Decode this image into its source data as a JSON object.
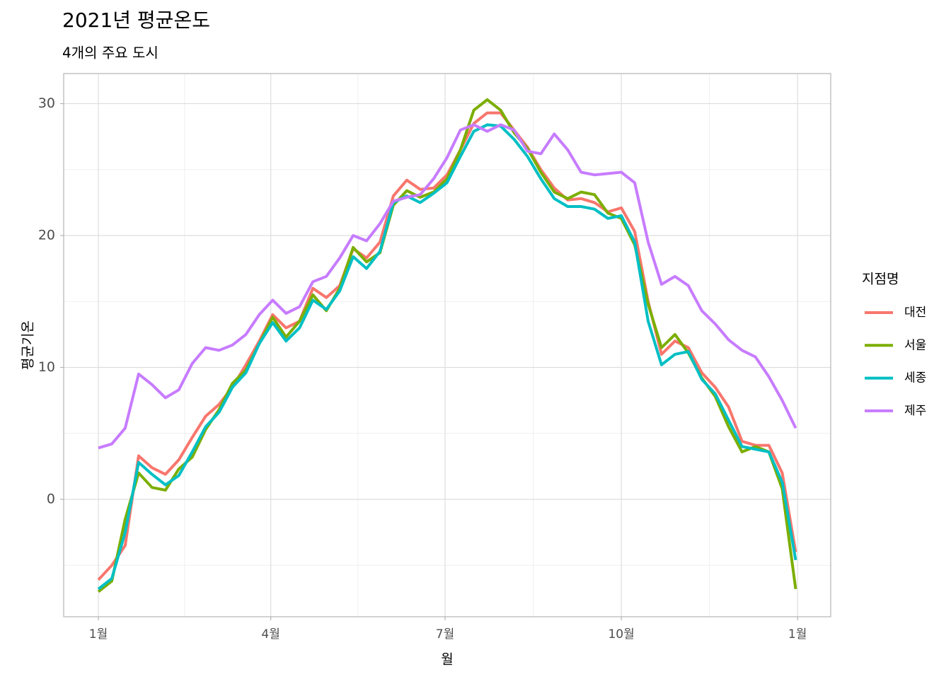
{
  "chart_data": {
    "type": "line",
    "title": "2021년 평균온도",
    "subtitle": "4개의 주요 도시",
    "xlabel": "월",
    "ylabel": "평균기온",
    "legend_title": "지점명",
    "legend_position": "right",
    "grid": true,
    "x": [
      0,
      7,
      14,
      21,
      28,
      35,
      42,
      49,
      56,
      63,
      70,
      77,
      84,
      91,
      98,
      105,
      112,
      119,
      126,
      133,
      140,
      147,
      154,
      161,
      168,
      175,
      182,
      189,
      196,
      203,
      210,
      217,
      224,
      231,
      238,
      245,
      252,
      259,
      266,
      273,
      280,
      287,
      294,
      301,
      308,
      315,
      322,
      329,
      336,
      343,
      350,
      357,
      364
    ],
    "xlim": [
      -18.1,
      382.3
    ],
    "xticks": [
      {
        "value": 0,
        "label": "1월"
      },
      {
        "value": 90,
        "label": "4월"
      },
      {
        "value": 181,
        "label": "7월"
      },
      {
        "value": 273,
        "label": "10월"
      },
      {
        "value": 365,
        "label": "1월"
      }
    ],
    "minor_xticks": [
      45,
      135.5,
      227,
      319
    ],
    "ylim": [
      -8.9,
      32.28
    ],
    "yticks": [
      0,
      10,
      20,
      30
    ],
    "minor_yticks": [
      -5,
      5,
      15,
      25
    ],
    "series": [
      {
        "name": "대전",
        "color": "#F8766D",
        "values": [
          -6.1,
          -5.0,
          -3.5,
          3.3,
          2.4,
          1.9,
          3.0,
          4.7,
          6.3,
          7.2,
          8.5,
          10.2,
          12.0,
          14.0,
          13.0,
          13.5,
          16.0,
          15.3,
          16.2,
          19.0,
          18.3,
          19.5,
          23.0,
          24.2,
          23.5,
          23.6,
          24.6,
          26.5,
          28.5,
          29.3,
          29.3,
          28.0,
          26.7,
          25.0,
          23.6,
          22.7,
          22.8,
          22.5,
          21.8,
          22.1,
          20.3,
          15.0,
          11.0,
          12.0,
          11.5,
          9.6,
          8.5,
          7.0,
          4.4,
          4.1,
          4.1,
          2.0,
          -4.0
        ]
      },
      {
        "name": "서울",
        "color": "#7CAE00",
        "values": [
          -7.0,
          -6.2,
          -1.5,
          2.0,
          0.9,
          0.7,
          2.3,
          3.2,
          5.3,
          6.8,
          8.8,
          9.8,
          11.8,
          13.8,
          12.3,
          13.5,
          15.5,
          14.3,
          16.0,
          19.1,
          18.0,
          18.7,
          22.3,
          23.4,
          22.9,
          23.3,
          24.3,
          26.5,
          29.5,
          30.3,
          29.5,
          27.8,
          26.6,
          24.8,
          23.3,
          22.8,
          23.3,
          23.1,
          21.7,
          21.3,
          19.3,
          14.8,
          11.5,
          12.5,
          11.1,
          9.2,
          7.8,
          5.5,
          3.6,
          4.0,
          3.6,
          0.8,
          -6.8
        ]
      },
      {
        "name": "세종",
        "color": "#00BFC4",
        "values": [
          -6.8,
          -6.0,
          -2.5,
          2.8,
          1.9,
          1.1,
          1.8,
          3.6,
          5.5,
          6.6,
          8.5,
          9.6,
          11.8,
          13.4,
          12.0,
          13.0,
          15.1,
          14.4,
          15.8,
          18.4,
          17.5,
          18.8,
          22.5,
          23.0,
          22.5,
          23.2,
          24.0,
          26.0,
          27.9,
          28.4,
          28.3,
          27.3,
          26.0,
          24.3,
          22.8,
          22.2,
          22.2,
          22.0,
          21.3,
          21.5,
          19.5,
          13.5,
          10.2,
          11.0,
          11.2,
          9.1,
          8.0,
          6.0,
          4.0,
          3.8,
          3.6,
          1.3,
          -4.6
        ]
      },
      {
        "name": "제주",
        "color": "#C77CFF",
        "values": [
          3.9,
          4.2,
          5.4,
          9.5,
          8.7,
          7.7,
          8.3,
          10.3,
          11.5,
          11.3,
          11.7,
          12.5,
          14.0,
          15.1,
          14.1,
          14.6,
          16.5,
          16.9,
          18.3,
          20.0,
          19.6,
          20.9,
          22.6,
          22.9,
          23.1,
          24.3,
          25.9,
          28.0,
          28.4,
          27.9,
          28.4,
          28.0,
          26.4,
          26.2,
          27.7,
          26.5,
          24.8,
          24.6,
          24.7,
          24.8,
          24.0,
          19.5,
          16.3,
          16.9,
          16.2,
          14.3,
          13.3,
          12.1,
          11.3,
          10.8,
          9.3,
          7.5,
          5.4
        ]
      }
    ]
  }
}
